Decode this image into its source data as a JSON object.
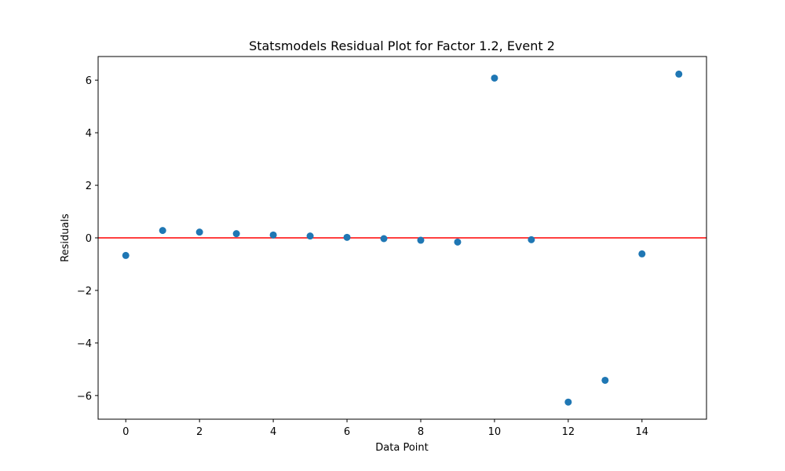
{
  "chart_data": {
    "type": "scatter",
    "title": "Statsmodels Residual Plot for Factor 1.2, Event 2",
    "xlabel": "Data Point",
    "ylabel": "Residuals",
    "xlim": [
      -0.75,
      15.75
    ],
    "ylim": [
      -6.9,
      6.9
    ],
    "x_ticks": [
      0,
      2,
      4,
      6,
      8,
      10,
      12,
      14
    ],
    "y_ticks": [
      -6,
      -4,
      -2,
      0,
      2,
      4,
      6
    ],
    "grid": false,
    "marker_color": "#1f77b4",
    "reference_line": {
      "y": 0,
      "color": "#ff0000"
    },
    "series": [
      {
        "x": [
          0,
          1,
          2,
          3,
          4,
          5,
          6,
          7,
          8,
          9,
          10,
          11,
          12,
          13,
          14,
          15
        ],
        "y": [
          -0.67,
          0.28,
          0.22,
          0.16,
          0.11,
          0.07,
          0.02,
          -0.03,
          -0.09,
          -0.16,
          6.08,
          -0.07,
          -6.25,
          -5.42,
          -0.61,
          6.23
        ]
      }
    ]
  }
}
